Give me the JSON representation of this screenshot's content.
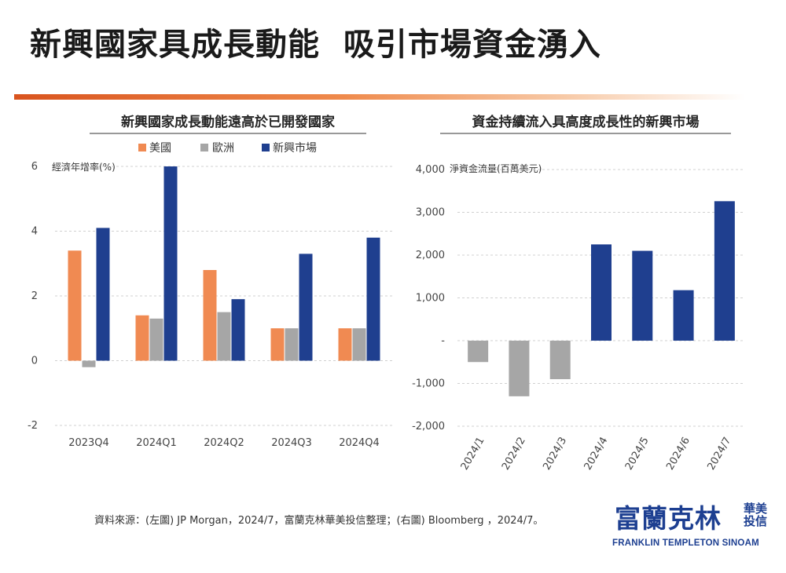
{
  "page": {
    "title": "新興國家具成長動能  吸引市場資金湧入",
    "source": "資料來源：(左圖) JP Morgan，2024/7，富蘭克林華美投信整理；(右圖) Bloomberg ，2024/7。"
  },
  "brand": {
    "cn": "富蘭克林",
    "cn_small": "華美投信",
    "en": "FRANKLIN TEMPLETON SINOAM"
  },
  "colors": {
    "us": "#f08a52",
    "europe": "#a6a6a6",
    "emerging": "#1f3f8f",
    "outflow": "#a6a6a6",
    "inflow": "#1f3f8f",
    "accent": "#d9541e"
  },
  "chart_data": [
    {
      "type": "bar",
      "title": "新興國家成長動能遠高於已開發國家",
      "ylabel": "經濟年增率(%)",
      "categories": [
        "2023Q4",
        "2024Q1",
        "2024Q2",
        "2024Q3",
        "2024Q4"
      ],
      "series": [
        {
          "name": "美國",
          "values": [
            3.4,
            1.4,
            2.8,
            1.0,
            1.0
          ]
        },
        {
          "name": "歐洲",
          "values": [
            -0.2,
            1.3,
            1.5,
            1.0,
            1.0
          ]
        },
        {
          "name": "新興市場",
          "values": [
            4.1,
            6.0,
            1.9,
            3.3,
            3.8
          ]
        }
      ],
      "ylim": [
        -2,
        6
      ],
      "yticks": [
        "-2",
        "0",
        "2",
        "4",
        "6"
      ],
      "grid": true,
      "legend": "top"
    },
    {
      "type": "bar",
      "title": "資金持續流入具高度成長性的新興市場",
      "ylabel": "淨資金流量(百萬美元)",
      "categories": [
        "2024/1",
        "2024/2",
        "2024/3",
        "2024/4",
        "2024/5",
        "2024/6",
        "2024/7"
      ],
      "values": [
        -500,
        -1300,
        -900,
        2250,
        2100,
        1180,
        3260
      ],
      "ylim": [
        -2000,
        4000
      ],
      "yticks": [
        "-2,000",
        "-1,000",
        "-",
        "1,000",
        "2,000",
        "3,000",
        "4,000"
      ],
      "grid": true
    }
  ]
}
